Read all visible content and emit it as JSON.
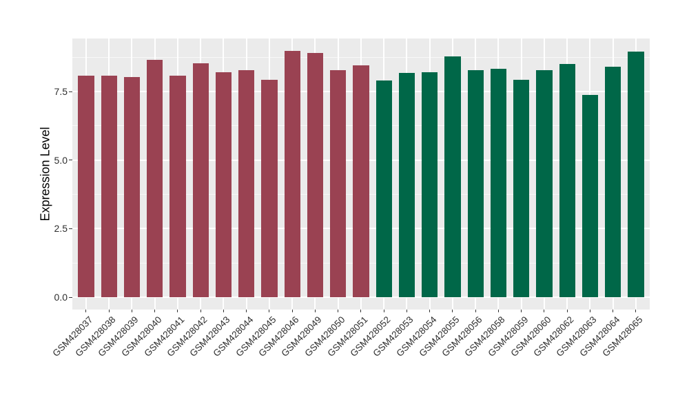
{
  "figure": {
    "background_color": "#FFFFFF",
    "panel_background_color": "#EBEBEB",
    "gridline_color": "#FFFFFF",
    "tick_color": "#333333",
    "axis_text_color": "#2E2E2E"
  },
  "chart_data": {
    "type": "bar",
    "title": "",
    "xlabel": "",
    "ylabel": "Expression Level",
    "ylim": [
      0,
      9.43
    ],
    "yticks": [
      0.0,
      2.5,
      5.0,
      7.5
    ],
    "ytick_labels": [
      "0.0",
      "2.5",
      "5.0",
      "7.5"
    ],
    "grid": "major and minor horizontal, major vertical",
    "legend_position": "none",
    "x_tick_rotation": 45,
    "categories": [
      "GSM428037",
      "GSM428038",
      "GSM428039",
      "GSM428040",
      "GSM428041",
      "GSM428042",
      "GSM428043",
      "GSM428044",
      "GSM428045",
      "GSM428046",
      "GSM428049",
      "GSM428050",
      "GSM428051",
      "GSM428052",
      "GSM428053",
      "GSM428054",
      "GSM428055",
      "GSM428056",
      "GSM428058",
      "GSM428059",
      "GSM428060",
      "GSM428062",
      "GSM428063",
      "GSM428064",
      "GSM428065"
    ],
    "values": [
      8.08,
      8.09,
      8.02,
      8.67,
      8.08,
      8.53,
      8.2,
      8.27,
      7.92,
      8.98,
      8.92,
      8.27,
      8.46,
      7.9,
      8.17,
      8.21,
      8.79,
      8.28,
      8.33,
      7.93,
      8.28,
      8.5,
      7.39,
      8.41,
      8.95
    ],
    "groups": [
      {
        "name": "group-1",
        "color": "#9A4252",
        "from": 0,
        "to": 12
      },
      {
        "name": "group-2",
        "color": "#006748",
        "from": 13,
        "to": 24
      }
    ]
  }
}
